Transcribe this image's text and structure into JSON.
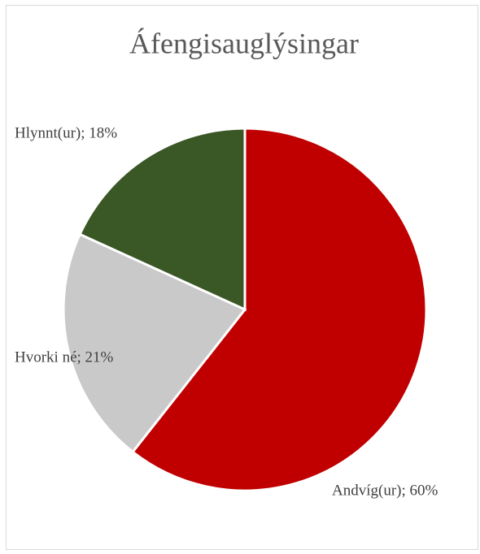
{
  "chart_data": {
    "type": "pie",
    "title": "Áfengisauglýsingar",
    "values": [
      60,
      21,
      18
    ],
    "value_labels": [
      "Andvíg(ur); 60%",
      "Hvorki né; 21%",
      "Hlynnt(ur); 18%"
    ],
    "colors": [
      "#c00000",
      "#c9c9c9",
      "#3a5726"
    ]
  }
}
